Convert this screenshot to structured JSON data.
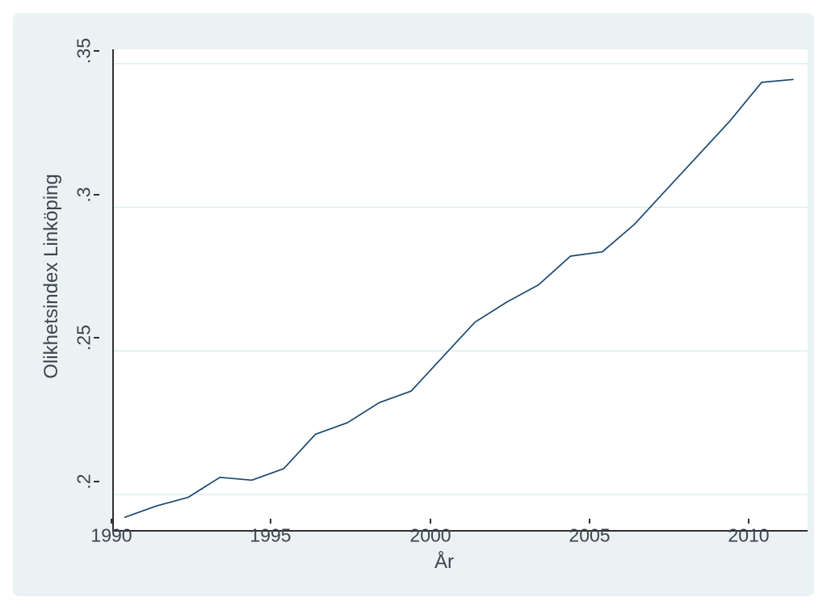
{
  "figure": {
    "background_color": "#ffffff",
    "graph_region_color": "#eaf2f3",
    "plot_background_color": "#ffffff",
    "grid_color": "#dcebee",
    "axis_color": "#303030",
    "text_color": "#3d454d"
  },
  "chart_data": {
    "type": "line",
    "title": "",
    "xlabel": "År",
    "ylabel": "Olikhetsindex Linköping",
    "line_color": "#1a476f",
    "grid": "horizontal",
    "legend": "none",
    "xlim": [
      1989.671,
      2011.442
    ],
    "ylim": [
      0.18765,
      0.355
    ],
    "x_ticks": [
      1990,
      1995,
      2000,
      2005,
      2010
    ],
    "y_ticks": [
      0.2,
      0.25,
      0.3,
      0.35
    ],
    "y_tick_labels": [
      ".2",
      ".25",
      ".3",
      ".35"
    ],
    "x": [
      1990,
      1991,
      1992,
      1993,
      1994,
      1995,
      1996,
      1997,
      1998,
      1999,
      2000,
      2001,
      2002,
      2003,
      2004,
      2005,
      2006,
      2007,
      2008,
      2009,
      2010,
      2011
    ],
    "series": [
      {
        "name": "Olikhetsindex Linköping",
        "values": [
          0.192,
          0.196,
          0.199,
          0.206,
          0.205,
          0.209,
          0.221,
          0.225,
          0.232,
          0.236,
          0.248,
          0.26,
          0.267,
          0.273,
          0.283,
          0.2845,
          0.294,
          0.306,
          0.318,
          0.33,
          0.3435,
          0.3445
        ]
      }
    ]
  }
}
